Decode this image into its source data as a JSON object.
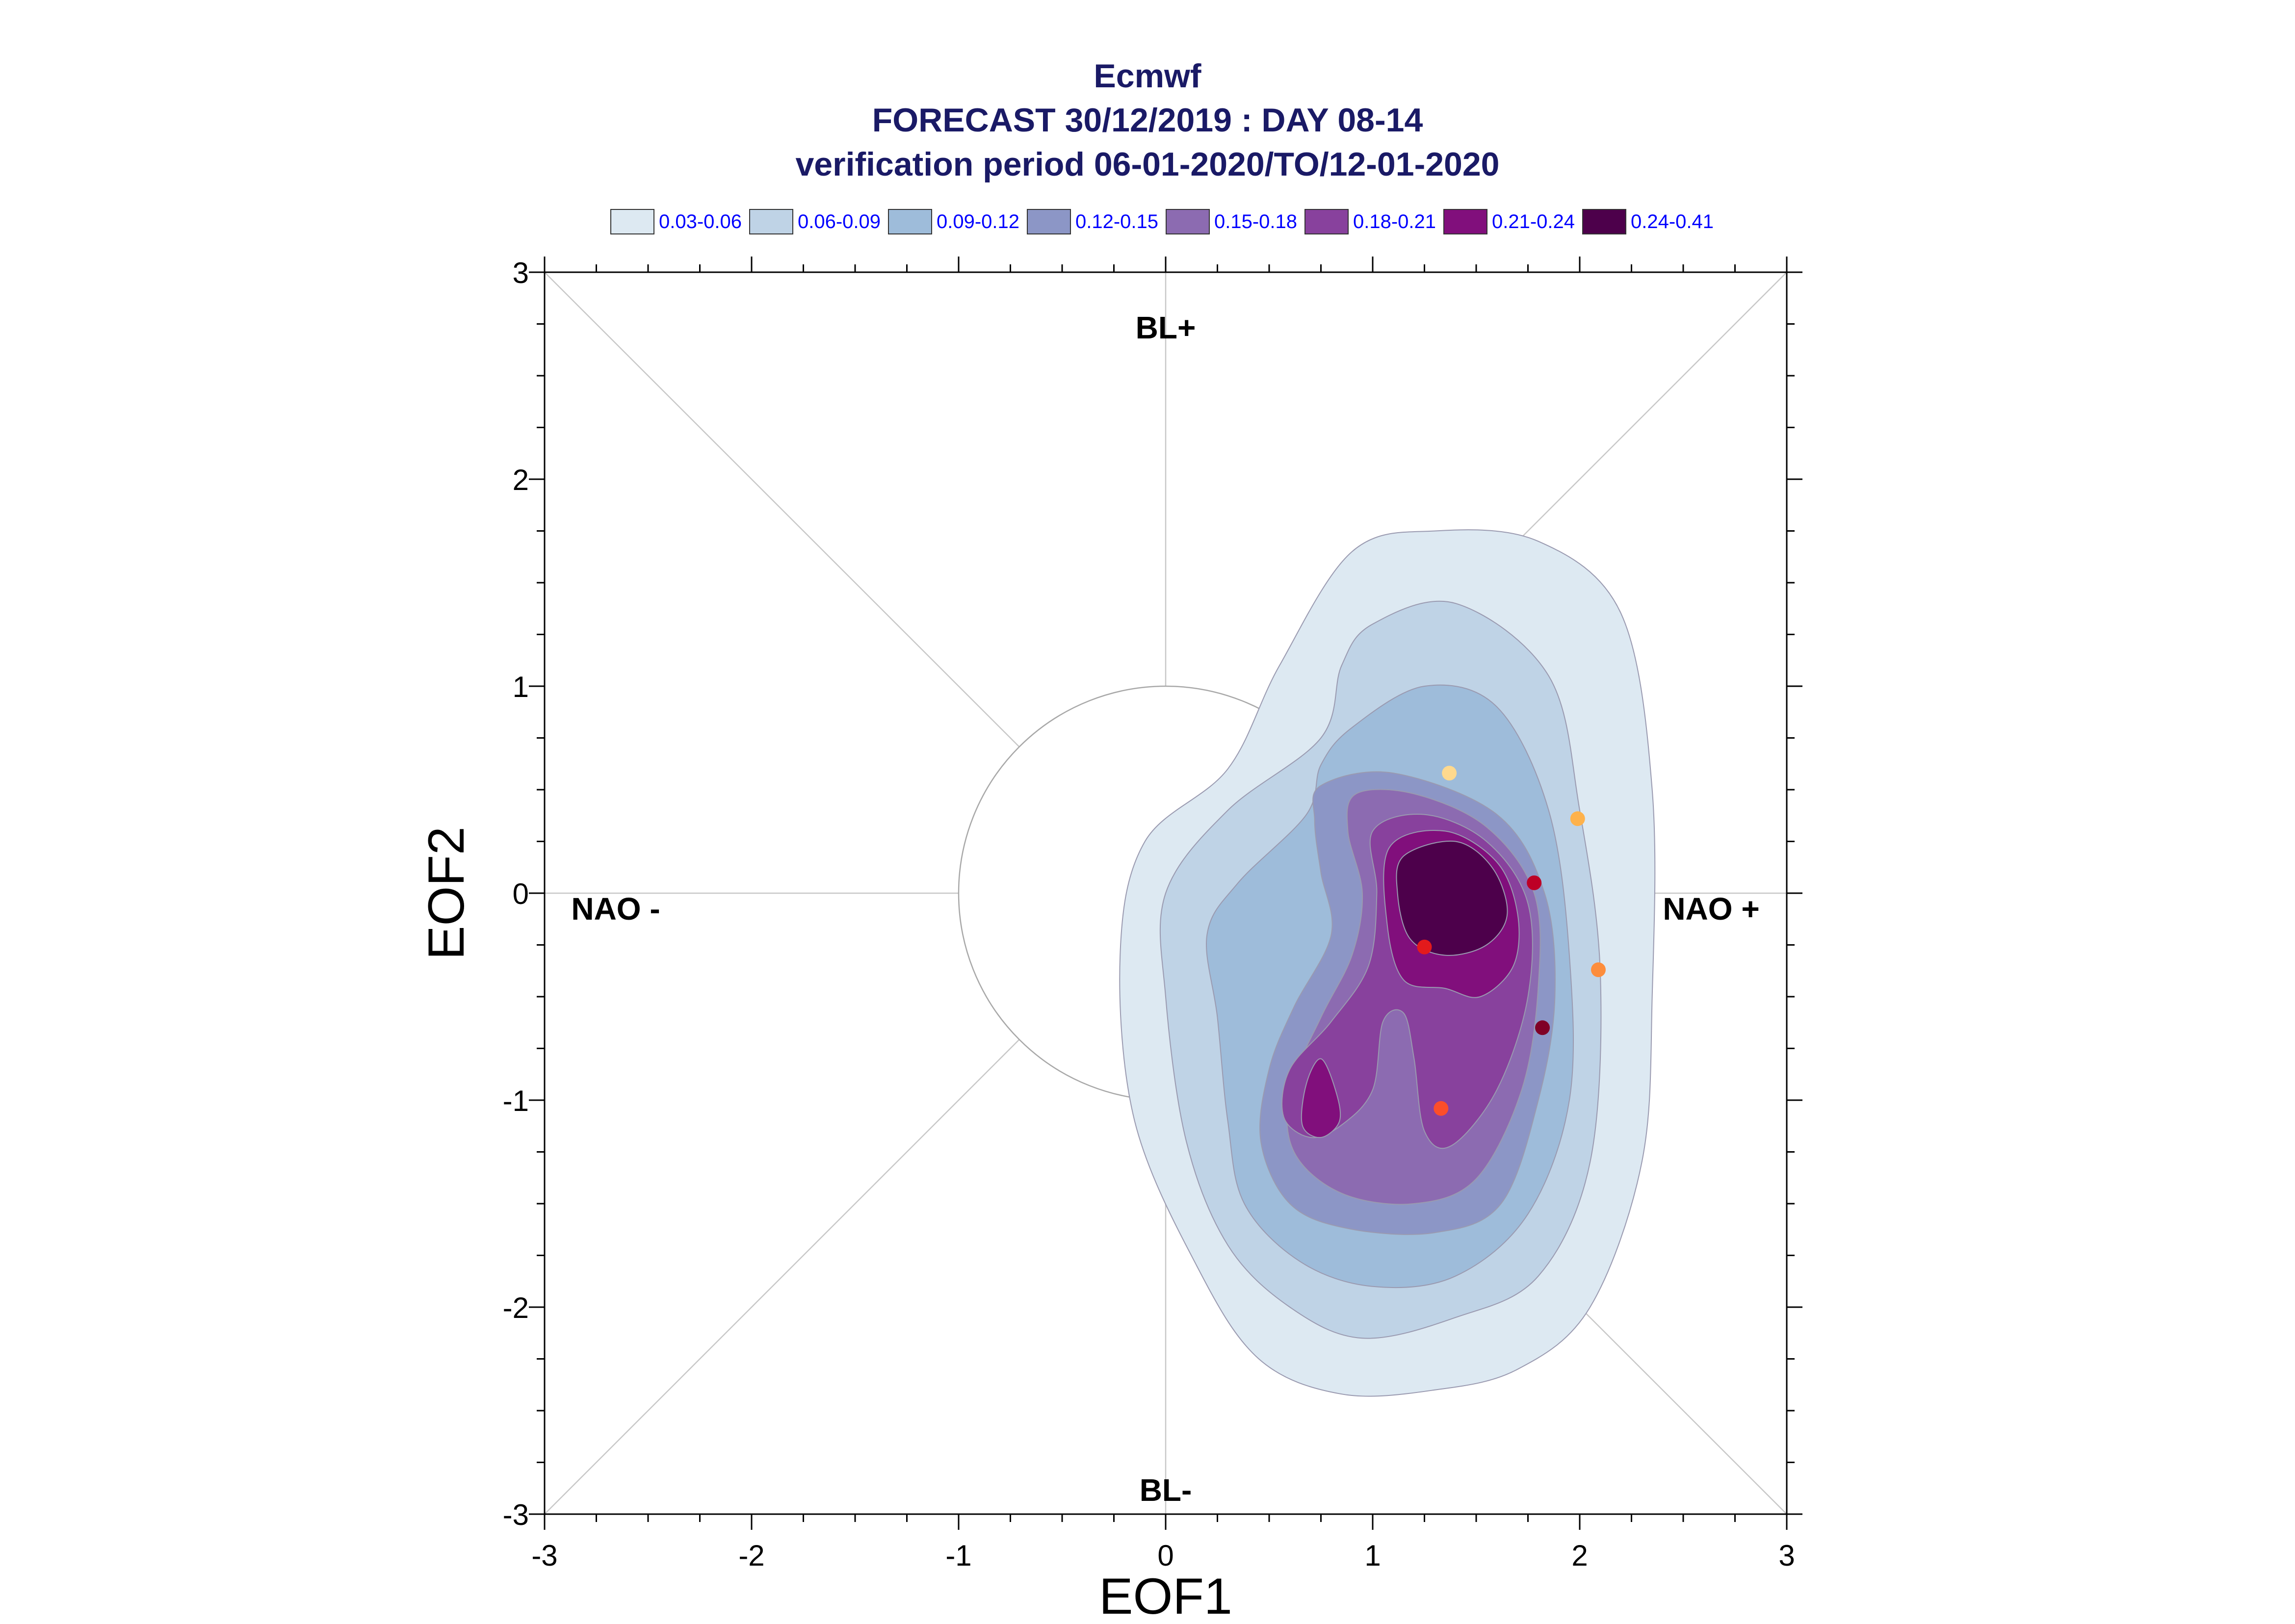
{
  "chart_data": {
    "type": "contour",
    "title_lines": [
      "Ecmwf",
      "FORECAST 30/12/2019 : DAY 08-14",
      "verification period 06-01-2020/TO/12-01-2020"
    ],
    "xlabel": "EOF1",
    "ylabel": "EOF2",
    "xlim": [
      -3,
      3
    ],
    "ylim": [
      -3,
      3
    ],
    "xticks": [
      "-3",
      "-2",
      "-1",
      "0",
      "1",
      "2",
      "3"
    ],
    "yticks": [
      "3",
      "2",
      "1",
      "0",
      "-1",
      "-2",
      "-3"
    ],
    "regime_labels": {
      "top": "BL+",
      "bottom": "BL-",
      "left": "NAO -",
      "right": "NAO +"
    },
    "legend": [
      {
        "label": "0.03-0.06",
        "color": "#dde9f2"
      },
      {
        "label": "0.06-0.09",
        "color": "#bfd3e6"
      },
      {
        "label": "0.09-0.12",
        "color": "#9ebcda"
      },
      {
        "label": "0.12-0.15",
        "color": "#8c96c6"
      },
      {
        "label": "0.15-0.18",
        "color": "#8c6bb1"
      },
      {
        "label": "0.18-0.21",
        "color": "#88419d"
      },
      {
        "label": "0.21-0.24",
        "color": "#810f7c"
      },
      {
        "label": "0.24-0.41",
        "color": "#4d004b"
      }
    ],
    "contour_levels": [
      {
        "polygons": [
          [
            [
              0.9,
              1.65
            ],
            [
              1.3,
              1.75
            ],
            [
              1.8,
              1.7
            ],
            [
              2.2,
              1.35
            ],
            [
              2.35,
              0.5
            ],
            [
              2.35,
              -0.5
            ],
            [
              2.3,
              -1.3
            ],
            [
              2.05,
              -2.0
            ],
            [
              1.7,
              -2.3
            ],
            [
              1.3,
              -2.4
            ],
            [
              0.85,
              -2.42
            ],
            [
              0.45,
              -2.25
            ],
            [
              0.15,
              -1.8
            ],
            [
              -0.15,
              -1.1
            ],
            [
              -0.22,
              -0.3
            ],
            [
              -0.1,
              0.25
            ],
            [
              0.3,
              0.6
            ],
            [
              0.55,
              1.1
            ]
          ]
        ]
      },
      {
        "polygons": [
          [
            [
              1.0,
              1.3
            ],
            [
              1.4,
              1.4
            ],
            [
              1.85,
              1.05
            ],
            [
              2.0,
              0.4
            ],
            [
              2.1,
              -0.4
            ],
            [
              2.05,
              -1.3
            ],
            [
              1.8,
              -1.85
            ],
            [
              1.4,
              -2.05
            ],
            [
              0.95,
              -2.15
            ],
            [
              0.6,
              -2.0
            ],
            [
              0.3,
              -1.7
            ],
            [
              0.1,
              -1.2
            ],
            [
              0.0,
              -0.5
            ],
            [
              0.0,
              0.0
            ],
            [
              0.3,
              0.4
            ],
            [
              0.75,
              0.75
            ],
            [
              0.85,
              1.1
            ]
          ]
        ]
      },
      {
        "polygons": [
          [
            [
              0.9,
              0.8
            ],
            [
              1.25,
              1.0
            ],
            [
              1.6,
              0.9
            ],
            [
              1.85,
              0.4
            ],
            [
              1.95,
              -0.3
            ],
            [
              1.95,
              -1.0
            ],
            [
              1.75,
              -1.55
            ],
            [
              1.4,
              -1.85
            ],
            [
              1.0,
              -1.9
            ],
            [
              0.65,
              -1.78
            ],
            [
              0.38,
              -1.5
            ],
            [
              0.3,
              -1.1
            ],
            [
              0.25,
              -0.6
            ],
            [
              0.2,
              -0.2
            ],
            [
              0.35,
              0.05
            ],
            [
              0.68,
              0.38
            ],
            [
              0.75,
              0.62
            ]
          ]
        ]
      },
      {
        "polygons": [
          [
            [
              0.75,
              0.52
            ],
            [
              1.1,
              0.58
            ],
            [
              1.6,
              0.38
            ],
            [
              1.83,
              0.0
            ],
            [
              1.88,
              -0.5
            ],
            [
              1.8,
              -1.0
            ],
            [
              1.62,
              -1.5
            ],
            [
              1.3,
              -1.64
            ],
            [
              0.88,
              -1.62
            ],
            [
              0.6,
              -1.5
            ],
            [
              0.46,
              -1.2
            ],
            [
              0.5,
              -0.85
            ],
            [
              0.62,
              -0.55
            ],
            [
              0.8,
              -0.2
            ],
            [
              0.75,
              0.1
            ],
            [
              0.72,
              0.35
            ]
          ]
        ]
      },
      {
        "polygons": [
          [
            [
              0.92,
              0.48
            ],
            [
              1.2,
              0.48
            ],
            [
              1.55,
              0.32
            ],
            [
              1.78,
              0.0
            ],
            [
              1.8,
              -0.45
            ],
            [
              1.72,
              -0.95
            ],
            [
              1.5,
              -1.38
            ],
            [
              1.2,
              -1.5
            ],
            [
              0.85,
              -1.45
            ],
            [
              0.62,
              -1.25
            ],
            [
              0.6,
              -0.95
            ],
            [
              0.75,
              -0.6
            ],
            [
              0.9,
              -0.3
            ],
            [
              0.95,
              0.0
            ],
            [
              0.88,
              0.3
            ]
          ]
        ]
      },
      {
        "polygons": [
          [
            [
              1.0,
              0.3
            ],
            [
              1.25,
              0.38
            ],
            [
              1.55,
              0.25
            ],
            [
              1.75,
              -0.05
            ],
            [
              1.75,
              -0.5
            ],
            [
              1.6,
              -0.95
            ],
            [
              1.38,
              -1.22
            ],
            [
              1.25,
              -1.15
            ],
            [
              1.2,
              -0.8
            ],
            [
              1.15,
              -0.58
            ],
            [
              1.05,
              -0.62
            ],
            [
              1.0,
              -0.95
            ],
            [
              0.85,
              -1.12
            ],
            [
              0.7,
              -1.18
            ],
            [
              0.57,
              -1.08
            ],
            [
              0.6,
              -0.85
            ],
            [
              0.8,
              -0.62
            ],
            [
              0.98,
              -0.35
            ],
            [
              1.02,
              0.0
            ]
          ]
        ]
      },
      {
        "polygons": [
          [
            [
              1.08,
              0.22
            ],
            [
              1.35,
              0.3
            ],
            [
              1.6,
              0.15
            ],
            [
              1.7,
              -0.1
            ],
            [
              1.68,
              -0.35
            ],
            [
              1.52,
              -0.5
            ],
            [
              1.35,
              -0.46
            ],
            [
              1.15,
              -0.42
            ],
            [
              1.07,
              -0.15
            ]
          ],
          [
            [
              0.75,
              -0.8
            ],
            [
              0.82,
              -0.95
            ],
            [
              0.84,
              -1.1
            ],
            [
              0.75,
              -1.18
            ],
            [
              0.66,
              -1.12
            ],
            [
              0.68,
              -0.92
            ]
          ]
        ]
      },
      {
        "polygons": [
          [
            [
              1.15,
              0.18
            ],
            [
              1.4,
              0.25
            ],
            [
              1.58,
              0.12
            ],
            [
              1.65,
              -0.1
            ],
            [
              1.55,
              -0.25
            ],
            [
              1.35,
              -0.3
            ],
            [
              1.18,
              -0.22
            ],
            [
              1.12,
              0.0
            ]
          ]
        ]
      }
    ],
    "scatter_points": [
      {
        "x": 1.37,
        "y": 0.58,
        "color": "#fed98e"
      },
      {
        "x": 1.99,
        "y": 0.36,
        "color": "#feb24c"
      },
      {
        "x": 1.78,
        "y": 0.05,
        "color": "#bd0026"
      },
      {
        "x": 1.25,
        "y": -0.26,
        "color": "#e31a1c"
      },
      {
        "x": 2.09,
        "y": -0.37,
        "color": "#fd8d3c"
      },
      {
        "x": 1.82,
        "y": -0.65,
        "color": "#800026"
      },
      {
        "x": 1.33,
        "y": -1.04,
        "color": "#fc4e2a"
      }
    ],
    "reference_circle_radius": 1,
    "grid_diagonals": true
  }
}
